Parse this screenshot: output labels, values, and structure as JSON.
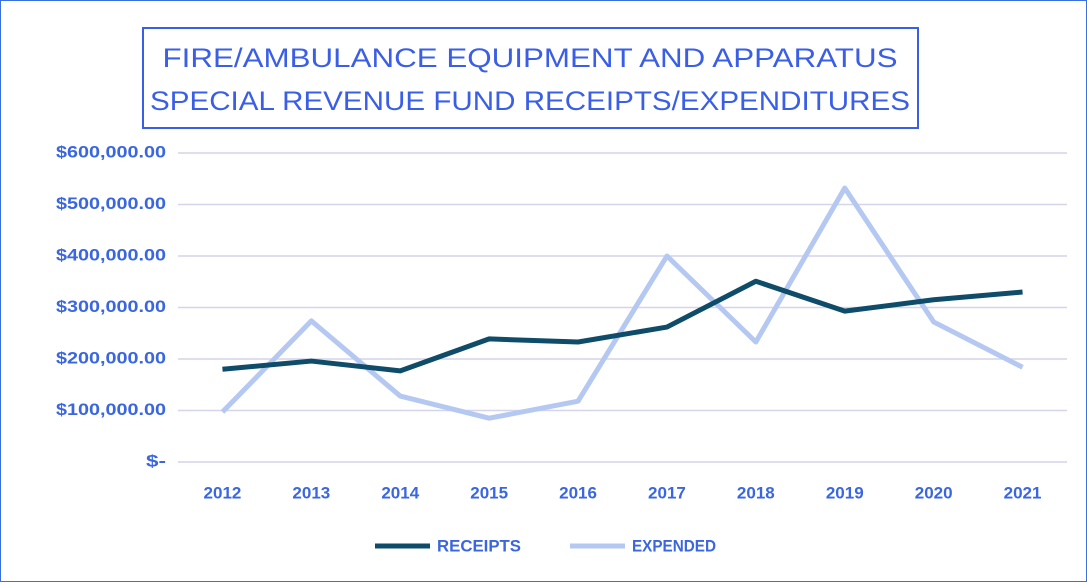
{
  "chart_data": {
    "type": "line",
    "title": [
      "FIRE/AMBULANCE EQUIPMENT AND APPARATUS",
      "SPECIAL REVENUE FUND RECEIPTS/EXPENDITURES"
    ],
    "categories": [
      "2012",
      "2013",
      "2014",
      "2015",
      "2016",
      "2017",
      "2018",
      "2019",
      "2020",
      "2021"
    ],
    "series": [
      {
        "name": "RECEIPTS",
        "color": "#0f4c69",
        "values": [
          180000,
          196000,
          177000,
          239000,
          233000,
          262000,
          351000,
          293000,
          315000,
          330000
        ]
      },
      {
        "name": "EXPENDED",
        "color": "#b4c8f2",
        "values": [
          97000,
          274000,
          128000,
          85000,
          118000,
          400000,
          233000,
          532000,
          272000,
          184000
        ]
      }
    ],
    "ylim": [
      0,
      600000
    ],
    "yticks": [
      {
        "value": 0,
        "label": "$-"
      },
      {
        "value": 100000,
        "label": "$100,000.00"
      },
      {
        "value": 200000,
        "label": "$200,000.00"
      },
      {
        "value": 300000,
        "label": "$300,000.00"
      },
      {
        "value": 400000,
        "label": "$400,000.00"
      },
      {
        "value": 500000,
        "label": "$500,000.00"
      },
      {
        "value": 600000,
        "label": "$600,000.00"
      }
    ],
    "grid": true,
    "legend": "bottom"
  }
}
